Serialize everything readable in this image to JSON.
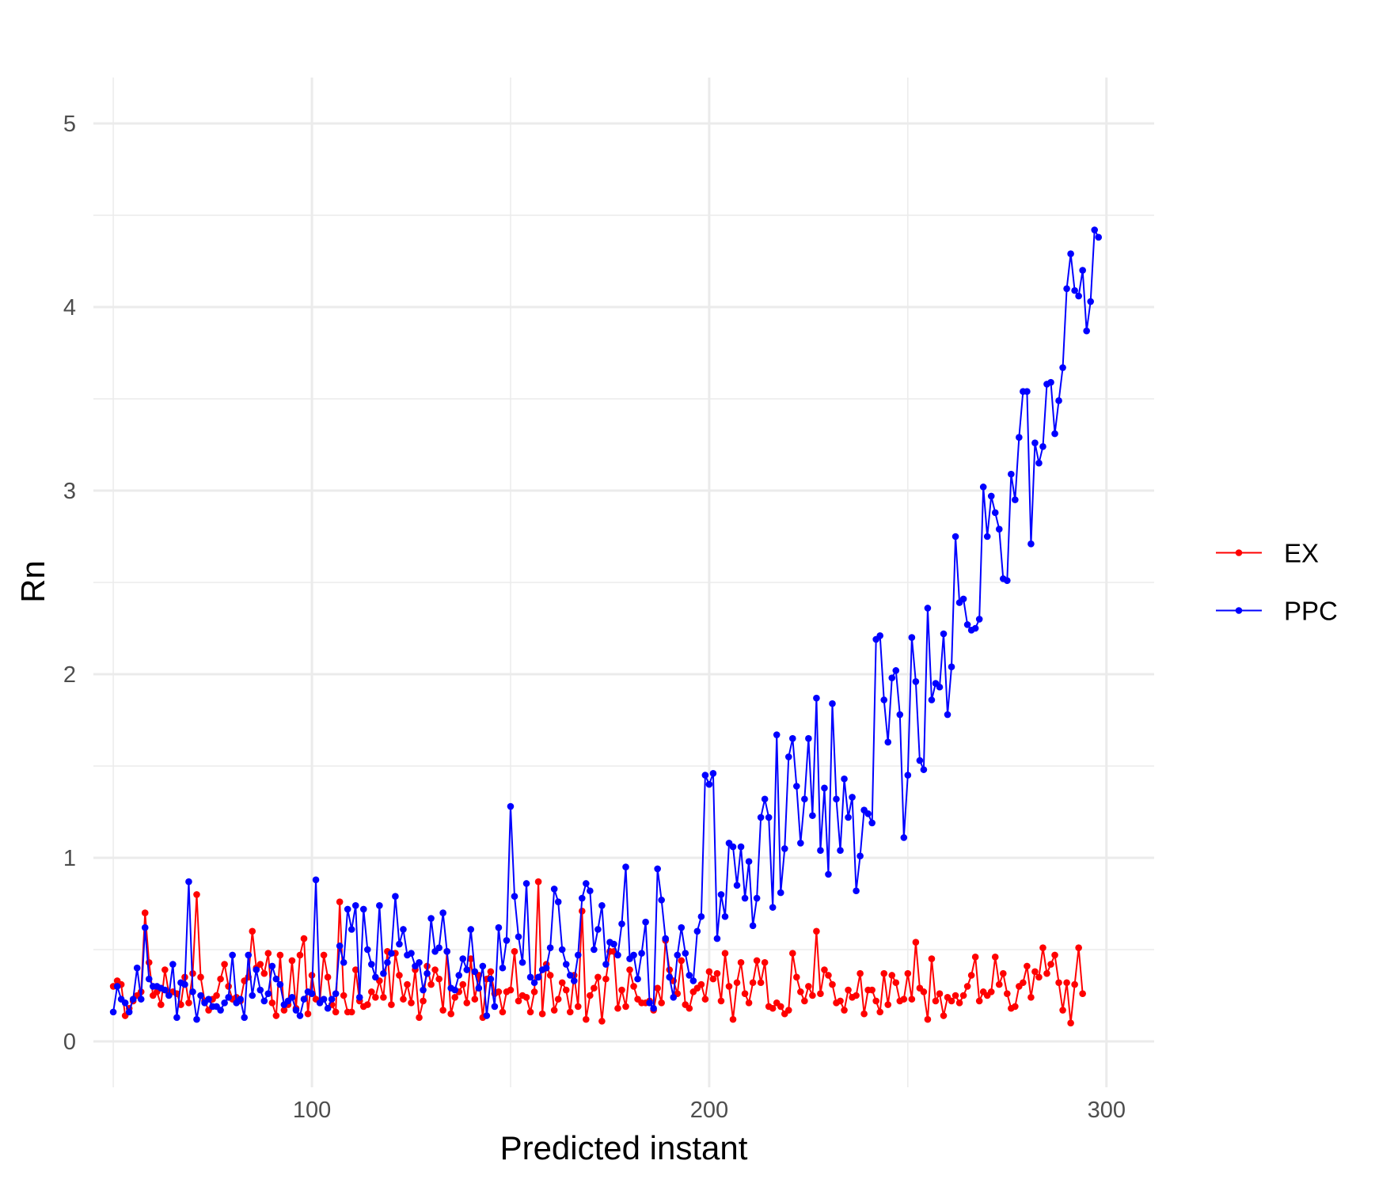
{
  "colors": {
    "EX": "#ff0000",
    "PPC": "#0000ff",
    "grid": "#ebebeb",
    "tick_text": "#4d4d4d"
  },
  "chart_data": {
    "type": "line",
    "title": "",
    "xlabel": "Predicted instant",
    "ylabel": "Rn",
    "xlim": [
      45,
      312
    ],
    "ylim": [
      -0.25,
      5.25
    ],
    "x_ticks": [
      100,
      200,
      300
    ],
    "x_tick_labels": [
      "100",
      "200",
      "300"
    ],
    "y_ticks": [
      0,
      1,
      2,
      3,
      4,
      5
    ],
    "y_tick_labels": [
      "0",
      "1",
      "2",
      "3",
      "4",
      "5"
    ],
    "grid": true,
    "legend_position": "right",
    "markers": true,
    "x_start": 50,
    "x_step": 1,
    "series": [
      {
        "name": "EX",
        "color": "#ff0000",
        "values": [
          0.3,
          0.33,
          0.31,
          0.14,
          0.18,
          0.22,
          0.25,
          0.27,
          0.7,
          0.43,
          0.25,
          0.27,
          0.2,
          0.39,
          0.26,
          0.27,
          0.26,
          0.2,
          0.35,
          0.21,
          0.37,
          0.8,
          0.35,
          0.22,
          0.17,
          0.23,
          0.25,
          0.34,
          0.42,
          0.3,
          0.23,
          0.24,
          0.22,
          0.33,
          0.35,
          0.6,
          0.4,
          0.42,
          0.37,
          0.48,
          0.21,
          0.14,
          0.47,
          0.17,
          0.2,
          0.44,
          0.18,
          0.47,
          0.56,
          0.15,
          0.36,
          0.23,
          0.22,
          0.47,
          0.35,
          0.2,
          0.16,
          0.76,
          0.25,
          0.16,
          0.16,
          0.39,
          0.22,
          0.19,
          0.2,
          0.27,
          0.24,
          0.33,
          0.24,
          0.49,
          0.2,
          0.48,
          0.36,
          0.23,
          0.31,
          0.21,
          0.39,
          0.13,
          0.22,
          0.41,
          0.31,
          0.39,
          0.34,
          0.17,
          0.49,
          0.15,
          0.24,
          0.27,
          0.31,
          0.21,
          0.45,
          0.23,
          0.36,
          0.13,
          0.34,
          0.38,
          0.26,
          0.27,
          0.16,
          0.27,
          0.28,
          0.49,
          0.22,
          0.25,
          0.24,
          0.16,
          0.27,
          0.87,
          0.15,
          0.42,
          0.36,
          0.17,
          0.23,
          0.32,
          0.28,
          0.16,
          0.36,
          0.19,
          0.71,
          0.12,
          0.25,
          0.29,
          0.35,
          0.11,
          0.34,
          0.49,
          0.49,
          0.18,
          0.28,
          0.19,
          0.39,
          0.3,
          0.23,
          0.21,
          0.21,
          0.22,
          0.17,
          0.29,
          0.21,
          0.55,
          0.39,
          0.33,
          0.26,
          0.44,
          0.2,
          0.18,
          0.27,
          0.29,
          0.31,
          0.23,
          0.38,
          0.34,
          0.37,
          0.22,
          0.48,
          0.3,
          0.12,
          0.32,
          0.43,
          0.26,
          0.21,
          0.32,
          0.44,
          0.32,
          0.43,
          0.19,
          0.18,
          0.21,
          0.19,
          0.15,
          0.17,
          0.48,
          0.35,
          0.27,
          0.22,
          0.3,
          0.25,
          0.6,
          0.26,
          0.39,
          0.36,
          0.31,
          0.21,
          0.22,
          0.17,
          0.28,
          0.24,
          0.25,
          0.37,
          0.15,
          0.28,
          0.28,
          0.22,
          0.16,
          0.37,
          0.2,
          0.36,
          0.32,
          0.22,
          0.23,
          0.37,
          0.23,
          0.54,
          0.29,
          0.27,
          0.12,
          0.45,
          0.22,
          0.26,
          0.14,
          0.24,
          0.22,
          0.25,
          0.21,
          0.25,
          0.3,
          0.36,
          0.46,
          0.22,
          0.27,
          0.25,
          0.27,
          0.46,
          0.31,
          0.37,
          0.26,
          0.18,
          0.19,
          0.3,
          0.32,
          0.41,
          0.24,
          0.38,
          0.35,
          0.51,
          0.37,
          0.42,
          0.47,
          0.32,
          0.17,
          0.32,
          0.1,
          0.31,
          0.51,
          0.26
        ]
      },
      {
        "name": "PPC",
        "color": "#0000ff",
        "values": [
          0.16,
          0.3,
          0.23,
          0.21,
          0.16,
          0.23,
          0.4,
          0.23,
          0.62,
          0.34,
          0.3,
          0.3,
          0.29,
          0.28,
          0.25,
          0.42,
          0.13,
          0.32,
          0.31,
          0.87,
          0.27,
          0.12,
          0.25,
          0.21,
          0.23,
          0.19,
          0.19,
          0.17,
          0.21,
          0.24,
          0.47,
          0.21,
          0.23,
          0.13,
          0.47,
          0.25,
          0.39,
          0.28,
          0.22,
          0.26,
          0.41,
          0.34,
          0.31,
          0.2,
          0.22,
          0.24,
          0.17,
          0.14,
          0.23,
          0.27,
          0.26,
          0.88,
          0.21,
          0.23,
          0.18,
          0.23,
          0.26,
          0.52,
          0.43,
          0.72,
          0.61,
          0.74,
          0.24,
          0.72,
          0.5,
          0.42,
          0.35,
          0.74,
          0.37,
          0.43,
          0.48,
          0.79,
          0.53,
          0.61,
          0.47,
          0.48,
          0.41,
          0.43,
          0.28,
          0.37,
          0.67,
          0.49,
          0.51,
          0.7,
          0.49,
          0.29,
          0.28,
          0.36,
          0.45,
          0.39,
          0.61,
          0.38,
          0.29,
          0.41,
          0.14,
          0.34,
          0.19,
          0.62,
          0.4,
          0.55,
          1.28,
          0.79,
          0.57,
          0.43,
          0.86,
          0.35,
          0.32,
          0.35,
          0.39,
          0.4,
          0.51,
          0.83,
          0.76,
          0.5,
          0.42,
          0.36,
          0.33,
          0.47,
          0.78,
          0.86,
          0.82,
          0.5,
          0.61,
          0.74,
          0.42,
          0.54,
          0.53,
          0.47,
          0.64,
          0.95,
          0.45,
          0.47,
          0.34,
          0.48,
          0.65,
          0.21,
          0.18,
          0.94,
          0.77,
          0.56,
          0.35,
          0.24,
          0.47,
          0.62,
          0.48,
          0.36,
          0.33,
          0.6,
          0.68,
          1.45,
          1.4,
          1.46,
          0.56,
          0.8,
          0.68,
          1.08,
          1.06,
          0.85,
          1.06,
          0.78,
          0.98,
          0.63,
          0.78,
          1.22,
          1.32,
          1.22,
          0.73,
          1.67,
          0.81,
          1.05,
          1.55,
          1.65,
          1.39,
          1.08,
          1.32,
          1.65,
          1.23,
          1.87,
          1.04,
          1.38,
          0.91,
          1.84,
          1.32,
          1.04,
          1.43,
          1.22,
          1.33,
          0.82,
          1.01,
          1.26,
          1.24,
          1.19,
          2.19,
          2.21,
          1.86,
          1.63,
          1.98,
          2.02,
          1.78,
          1.11,
          1.45,
          2.2,
          1.96,
          1.53,
          1.48,
          2.36,
          1.86,
          1.95,
          1.93,
          2.22,
          1.78,
          2.04,
          2.75,
          2.39,
          2.41,
          2.27,
          2.24,
          2.25,
          2.3,
          3.02,
          2.75,
          2.97,
          2.88,
          2.79,
          2.52,
          2.51,
          3.09,
          2.95,
          3.29,
          3.54,
          3.54,
          2.71,
          3.26,
          3.15,
          3.24,
          3.58,
          3.59,
          3.31,
          3.49,
          3.67,
          4.1,
          4.29,
          4.09,
          4.06,
          4.2,
          3.87,
          4.03,
          4.42,
          4.38
        ]
      }
    ]
  }
}
